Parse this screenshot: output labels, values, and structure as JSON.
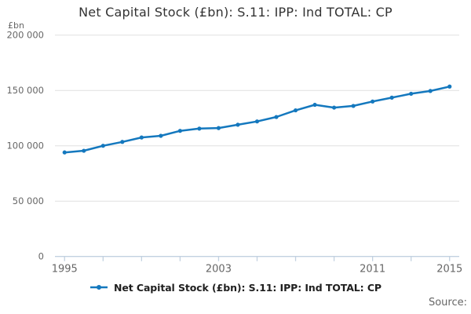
{
  "title": "Net Capital Stock (£bn): S.11: IPP: Ind TOTAL: CP",
  "axis_unit_label": "£bn",
  "source_label": "Source:",
  "legend": {
    "marker_icon": "line-dot-marker",
    "label": "Net Capital Stock (£bn): S.11: IPP: Ind TOTAL: CP"
  },
  "colors": {
    "series": "#1478be",
    "gridline": "#e0e0e0",
    "axis_line": "#c2d1e0",
    "tick_text": "#666666",
    "title_text": "#333333",
    "legend_text": "#1f1f1f",
    "source_text": "#666666",
    "background": "#ffffff"
  },
  "chart_data": {
    "type": "line",
    "title": "Net Capital Stock (£bn): S.11: IPP: Ind TOTAL: CP",
    "xlabel": "",
    "ylabel": "£bn",
    "x": [
      1995,
      1996,
      1997,
      1998,
      1999,
      2000,
      2001,
      2002,
      2003,
      2004,
      2005,
      2006,
      2007,
      2008,
      2009,
      2010,
      2011,
      2012,
      2013,
      2014,
      2015
    ],
    "series": [
      {
        "name": "Net Capital Stock (£bn): S.11: IPP: Ind TOTAL: CP",
        "values": [
          94000,
          95500,
          100000,
          103500,
          107500,
          109000,
          113500,
          115500,
          116000,
          119000,
          122000,
          126000,
          132000,
          137000,
          134500,
          136000,
          140000,
          143500,
          147000,
          149500,
          153500
        ]
      }
    ],
    "xlim": [
      1994.5,
      2015.5
    ],
    "ylim": [
      0,
      200000
    ],
    "yticks": [
      0,
      50000,
      100000,
      150000,
      200000
    ],
    "ytick_labels": [
      "0",
      "50 000",
      "100 000",
      "150 000",
      "200 000"
    ],
    "xticks": [
      1995,
      1997,
      1999,
      2001,
      2003,
      2005,
      2007,
      2009,
      2011,
      2013,
      2015
    ],
    "labeled_xticks": [
      1995,
      2003,
      2011,
      2015
    ],
    "grid": "horizontal",
    "legend_position": "bottom",
    "marker": "circle"
  }
}
